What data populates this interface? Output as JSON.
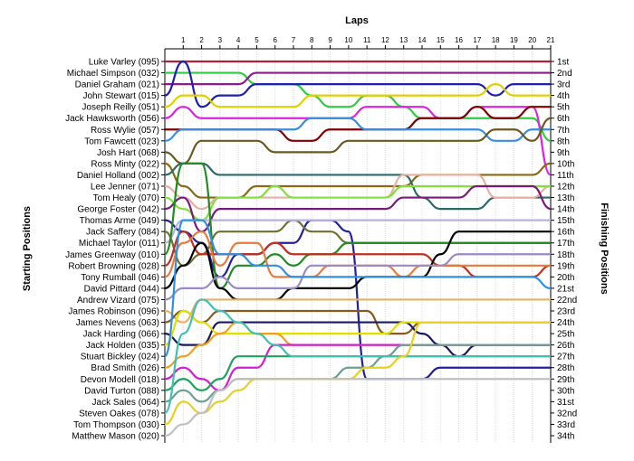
{
  "chart_data": {
    "type": "line",
    "title": "Laps",
    "ylabel_left": "Starting Positions",
    "ylabel_right": "Finishing Positions",
    "laps": [
      1,
      2,
      3,
      4,
      5,
      6,
      7,
      8,
      9,
      10,
      11,
      12,
      13,
      14,
      15,
      16,
      17,
      18,
      19,
      20,
      21
    ],
    "finishing_positions": [
      "1st",
      "2nd",
      "3rd",
      "4th",
      "5th",
      "6th",
      "7th",
      "8th",
      "9th",
      "10th",
      "11th",
      "12th",
      "13th",
      "14th",
      "15th",
      "16th",
      "17th",
      "18th",
      "19th",
      "20th",
      "21st",
      "22nd",
      "23rd",
      "24th",
      "25th",
      "26th",
      "27th",
      "28th",
      "29th",
      "30th",
      "31st",
      "32nd",
      "33rd",
      "34th"
    ],
    "series": [
      {
        "name": "Luke Varley (095)",
        "color": "#b0203a",
        "positions": [
          1,
          1,
          1,
          1,
          1,
          1,
          1,
          1,
          1,
          1,
          1,
          1,
          1,
          1,
          1,
          1,
          1,
          1,
          1,
          1,
          1,
          1
        ]
      },
      {
        "name": "Michael Simpson (032)",
        "color": "#2ecc40",
        "positions": [
          2,
          2,
          2,
          2,
          2,
          3,
          3,
          3,
          4,
          5,
          5,
          4,
          4,
          5,
          6,
          6,
          6,
          6,
          6,
          6,
          6,
          8
        ]
      },
      {
        "name": "Daniel Graham (021)",
        "color": "#8b1a8b",
        "positions": [
          3,
          3,
          3,
          3,
          3,
          2,
          2,
          2,
          2,
          2,
          2,
          2,
          2,
          2,
          2,
          2,
          2,
          2,
          2,
          2,
          2,
          2
        ]
      },
      {
        "name": "John Stewart (015)",
        "color": "#1f1fb0",
        "positions": [
          4,
          1,
          5,
          4,
          4,
          3,
          3,
          3,
          3,
          3,
          3,
          3,
          3,
          3,
          3,
          3,
          3,
          3,
          4,
          3,
          3,
          3
        ]
      },
      {
        "name": "Joseph Reilly (051)",
        "color": "#e0d000",
        "positions": [
          5,
          4,
          4,
          5,
          5,
          5,
          5,
          5,
          4,
          4,
          4,
          4,
          4,
          4,
          4,
          4,
          4,
          4,
          3,
          4,
          4,
          4
        ]
      },
      {
        "name": "Jack Hawksworth (056)",
        "color": "#e020e0",
        "positions": [
          6,
          5,
          6,
          6,
          6,
          6,
          6,
          6,
          6,
          6,
          6,
          5,
          5,
          5,
          5,
          6,
          6,
          5,
          5,
          5,
          5,
          11
        ]
      },
      {
        "name": "Ross Wylie (057)",
        "color": "#800000",
        "positions": [
          7,
          7,
          7,
          7,
          7,
          7,
          7,
          8,
          8,
          7,
          7,
          7,
          7,
          7,
          6,
          6,
          6,
          5,
          6,
          6,
          5,
          5
        ]
      },
      {
        "name": "Tom Fawcett (023)",
        "color": "#3a8ee0",
        "positions": [
          8,
          7,
          7,
          7,
          7,
          7,
          7,
          7,
          6,
          6,
          6,
          7,
          7,
          7,
          7,
          7,
          7,
          7,
          8,
          8,
          7,
          7
        ]
      },
      {
        "name": "Josh Hart (068)",
        "color": "#6b5a20",
        "positions": [
          9,
          10,
          8,
          8,
          8,
          8,
          9,
          9,
          9,
          9,
          8,
          8,
          8,
          8,
          8,
          8,
          8,
          8,
          7,
          7,
          8,
          6
        ]
      },
      {
        "name": "Ross Minty (022)",
        "color": "#8a6a10",
        "positions": [
          10,
          12,
          13,
          13,
          13,
          12,
          12,
          12,
          12,
          12,
          12,
          12,
          12,
          12,
          11,
          11,
          11,
          11,
          11,
          11,
          11,
          10
        ]
      },
      {
        "name": "Daniel Holland (002)",
        "color": "#2c6a6a",
        "positions": [
          11,
          10,
          10,
          11,
          11,
          11,
          11,
          11,
          11,
          11,
          11,
          11,
          11,
          11,
          13,
          14,
          14,
          14,
          13,
          13,
          13,
          13
        ]
      },
      {
        "name": "Lee Jenner (071)",
        "color": "#e8b0a0",
        "positions": [
          12,
          13,
          14,
          13,
          13,
          13,
          13,
          13,
          13,
          13,
          13,
          13,
          13,
          11,
          11,
          11,
          11,
          11,
          13,
          13,
          13,
          12
        ]
      },
      {
        "name": "Tom Healy (070)",
        "color": "#80e040",
        "positions": [
          13,
          14,
          15,
          13,
          13,
          13,
          12,
          13,
          13,
          13,
          13,
          13,
          13,
          12,
          12,
          12,
          12,
          12,
          12,
          12,
          12,
          12
        ]
      },
      {
        "name": "George Foster (042)",
        "color": "#7a1b7a",
        "positions": [
          14,
          13,
          16,
          14,
          14,
          14,
          14,
          14,
          14,
          14,
          14,
          14,
          14,
          13,
          13,
          13,
          13,
          12,
          12,
          12,
          12,
          14
        ]
      },
      {
        "name": "Thomas Arme (049)",
        "color": "#2020a0",
        "positions": [
          15,
          16,
          17,
          20,
          18,
          18,
          17,
          17,
          15,
          15,
          16,
          29,
          29,
          29,
          29,
          28,
          28,
          28,
          28,
          28,
          28,
          28
        ]
      },
      {
        "name": "Jack Saffery (084)",
        "color": "#707030",
        "positions": [
          16,
          19,
          18,
          16,
          16,
          16,
          16,
          15,
          16,
          16,
          17,
          17,
          17,
          17,
          17,
          17,
          17,
          17,
          17,
          17,
          17,
          17
        ]
      },
      {
        "name": "Michael Taylor (011)",
        "color": "#b8b0e0",
        "positions": [
          17,
          15,
          15,
          15,
          15,
          15,
          15,
          15,
          15,
          15,
          15,
          15,
          15,
          15,
          15,
          15,
          15,
          15,
          15,
          15,
          15,
          15
        ]
      },
      {
        "name": "James Greenway (010)",
        "color": "#228b22",
        "positions": [
          18,
          10,
          10,
          21,
          19,
          19,
          18,
          19,
          18,
          18,
          17,
          17,
          17,
          17,
          17,
          17,
          17,
          17,
          17,
          17,
          17,
          17
        ]
      },
      {
        "name": "Robert Browning (028)",
        "color": "#c03020",
        "positions": [
          19,
          16,
          18,
          18,
          18,
          18,
          17,
          18,
          18,
          18,
          18,
          18,
          18,
          18,
          18,
          19,
          19,
          20,
          20,
          20,
          20,
          19
        ]
      },
      {
        "name": "Tony Rumball (046)",
        "color": "#e87a3a",
        "positions": [
          20,
          17,
          16,
          19,
          17,
          17,
          20,
          20,
          20,
          19,
          19,
          19,
          19,
          20,
          19,
          19,
          19,
          19,
          19,
          19,
          19,
          19
        ]
      },
      {
        "name": "David Pittard (044)",
        "color": "#000000",
        "positions": [
          21,
          19,
          17,
          21,
          22,
          22,
          22,
          21,
          21,
          21,
          21,
          20,
          20,
          20,
          20,
          18,
          16,
          16,
          16,
          16,
          16,
          16
        ]
      },
      {
        "name": "Andrew Vizard (075)",
        "color": "#9a8ac8",
        "positions": [
          22,
          21,
          21,
          20,
          21,
          21,
          21,
          21,
          19,
          19,
          19,
          19,
          19,
          19,
          19,
          19,
          18,
          18,
          18,
          18,
          18,
          18
        ]
      },
      {
        "name": "James Robinson (096)",
        "color": "#e8b060",
        "positions": [
          23,
          24,
          22,
          22,
          22,
          22,
          22,
          22,
          22,
          22,
          22,
          22,
          22,
          22,
          22,
          22,
          22,
          22,
          22,
          22,
          22,
          22
        ]
      },
      {
        "name": "James Nevens (063)",
        "color": "#8a5a1a",
        "positions": [
          24,
          23,
          24,
          23,
          23,
          23,
          23,
          23,
          23,
          23,
          23,
          23,
          25,
          25,
          24,
          24,
          24,
          24,
          24,
          24,
          24,
          24
        ]
      },
      {
        "name": "Jack Harding (066)",
        "color": "#1a1a60",
        "positions": [
          25,
          26,
          26,
          24,
          24,
          24,
          24,
          24,
          24,
          24,
          24,
          24,
          24,
          24,
          25,
          26,
          27,
          26,
          26,
          26,
          26,
          26
        ]
      },
      {
        "name": "Jack Holden (035)",
        "color": "#e0e000",
        "positions": [
          26,
          23,
          24,
          25,
          25,
          25,
          25,
          25,
          25,
          25,
          25,
          25,
          25,
          24,
          24,
          24,
          24,
          24,
          24,
          24,
          24,
          24
        ]
      },
      {
        "name": "Stuart Bickley (024)",
        "color": "#3090e0",
        "positions": [
          27,
          15,
          15,
          18,
          18,
          19,
          19,
          20,
          20,
          20,
          20,
          20,
          20,
          20,
          20,
          20,
          20,
          20,
          20,
          20,
          20,
          21
        ]
      },
      {
        "name": "Brad Smith (026)",
        "color": "#f0a020",
        "positions": [
          28,
          27,
          26,
          25,
          24,
          25,
          25,
          26,
          26,
          26,
          26,
          26,
          26,
          26,
          26,
          26,
          26,
          26,
          26,
          26,
          26,
          26
        ]
      },
      {
        "name": "Devon Modell (018)",
        "color": "#d020d0",
        "positions": [
          29,
          28,
          29,
          30,
          28,
          28,
          26,
          26,
          26,
          26,
          26,
          26,
          26,
          26,
          26,
          26,
          26,
          26,
          26,
          26,
          26,
          26
        ]
      },
      {
        "name": "David Turton (088)",
        "color": "#20a060",
        "positions": [
          30,
          29,
          30,
          29,
          27,
          27,
          27,
          27,
          27,
          27,
          27,
          27,
          27,
          27,
          27,
          27,
          27,
          27,
          27,
          27,
          27,
          27
        ]
      },
      {
        "name": "Jack Sales (064)",
        "color": "#6aa090",
        "positions": [
          31,
          30,
          31,
          30,
          29,
          29,
          29,
          29,
          29,
          29,
          28,
          28,
          27,
          26,
          26,
          26,
          26,
          26,
          26,
          26,
          26,
          26
        ]
      },
      {
        "name": "Steven Oakes (078)",
        "color": "#40c0b0",
        "positions": [
          32,
          25,
          22,
          23,
          24,
          25,
          26,
          27,
          27,
          27,
          27,
          27,
          27,
          27,
          27,
          27,
          27,
          27,
          27,
          27,
          27,
          27
        ]
      },
      {
        "name": "Tom Thompson (030)",
        "color": "#e8d020",
        "positions": [
          33,
          31,
          32,
          31,
          30,
          29,
          29,
          29,
          29,
          29,
          29,
          28,
          28,
          27,
          24,
          24,
          24,
          24,
          24,
          24,
          24,
          24
        ]
      },
      {
        "name": "Matthew Mason (020)",
        "color": "#c0c0c0",
        "positions": [
          34,
          33,
          32,
          30,
          29,
          29,
          29,
          29,
          29,
          29,
          29,
          29,
          29,
          29,
          29,
          29,
          29,
          29,
          29,
          29,
          29,
          29
        ]
      }
    ]
  }
}
